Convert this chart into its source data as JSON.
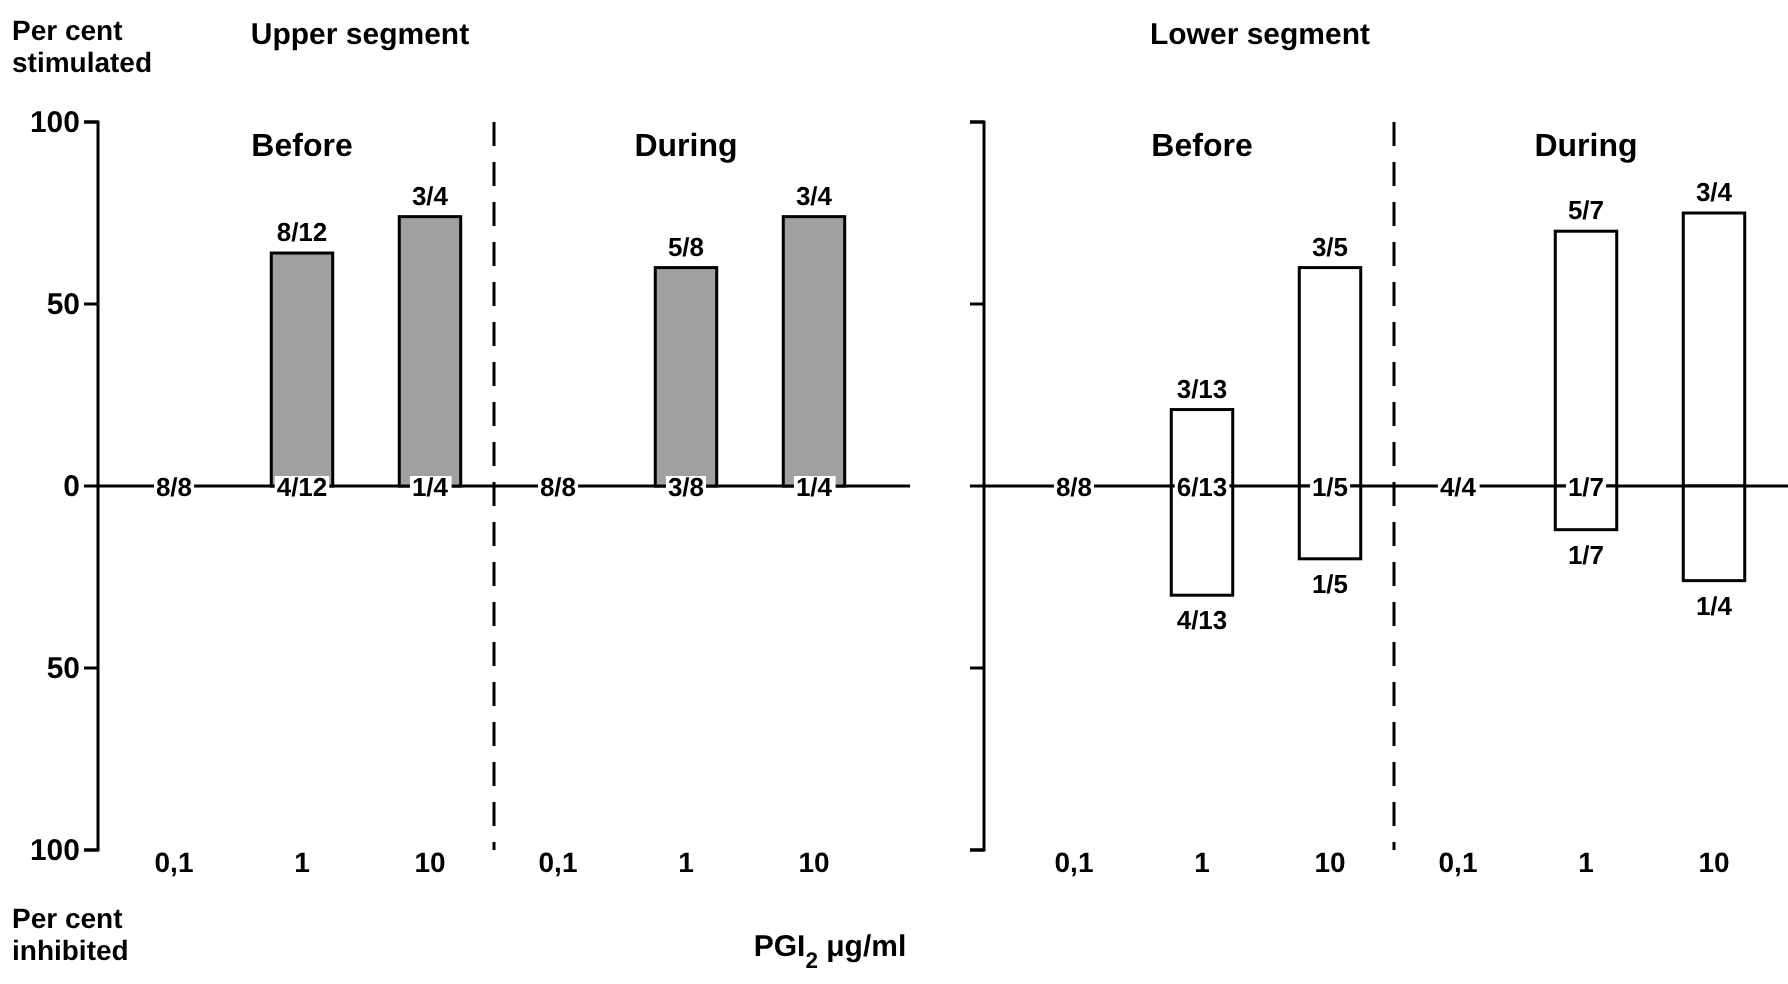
{
  "chart_data": [
    {
      "type": "bar",
      "title": "Before",
      "subtitle": "Upper segment",
      "ylabel": "Per cent stimulated",
      "categories": [
        "0,1",
        "1",
        "10"
      ],
      "ylim": [
        -100,
        100
      ],
      "yticks": [
        100,
        50,
        0,
        {
          "value": -50,
          "label": "50"
        },
        {
          "value": -100,
          "label": "100"
        }
      ],
      "ref_lines": [
        {
          "axis": "y",
          "value": 0
        }
      ],
      "series": [
        {
          "color": "#a0a0a0",
          "values": [
            0,
            64,
            74
          ]
        }
      ],
      "annotations": [
        "Per cent inhibited",
        {
          "text": "8/12",
          "x": "1",
          "y": 64
        },
        {
          "text": "3/4",
          "x": "10",
          "y": 74
        },
        {
          "text": "8/8",
          "x": "0,1",
          "y": 0
        },
        {
          "text": "4/12",
          "x": "1",
          "y": 0
        },
        {
          "text": "1/4",
          "x": "10",
          "y": 0
        }
      ]
    },
    {
      "type": "bar",
      "title": "During",
      "xlabel": "PGI$_{2}$ μg/ml",
      "categories": [
        "0,1",
        "1",
        "10"
      ],
      "ylim": [
        -100,
        100
      ],
      "tick_labels": "x",
      "ref_lines": [
        {
          "axis": "y",
          "value": 0
        }
      ],
      "series": [
        {
          "color": "#a0a0a0",
          "values": [
            0,
            60,
            74
          ]
        }
      ],
      "annotations": [
        {
          "text": "5/8",
          "x": "1",
          "y": 60
        },
        {
          "text": "3/4",
          "x": "10",
          "y": 74
        },
        {
          "text": "8/8",
          "x": "0,1",
          "y": 0
        },
        {
          "text": "3/8",
          "x": "1",
          "y": 0
        },
        {
          "text": "1/4",
          "x": "10",
          "y": 0
        }
      ]
    },
    {
      "type": "bar",
      "title": "Before",
      "subtitle": "Lower segment",
      "categories": [
        "0,1",
        "1",
        "10"
      ],
      "ylim": [
        -100,
        100
      ],
      "tick_labels": "x",
      "stacked": true,
      "ref_lines": [
        {
          "axis": "y",
          "value": 0
        }
      ],
      "series": [
        {
          "color": "#ffffff",
          "values": [
            0,
            21,
            60
          ]
        },
        {
          "color": "#ffffff",
          "values": [
            0,
            -30,
            -20
          ]
        }
      ],
      "annotations": [
        {
          "text": "3/13",
          "x": "1",
          "y": 21
        },
        {
          "text": "3/5",
          "x": "10",
          "y": 60
        },
        {
          "text": "4/13",
          "x": "1",
          "y": -30
        },
        {
          "text": "1/5",
          "x": "10",
          "y": -20
        },
        {
          "text": "8/8",
          "x": "0,1",
          "y": 0
        },
        {
          "text": "6/13",
          "x": "1",
          "y": 0
        },
        {
          "text": "1/5",
          "x": "10",
          "y": 0
        }
      ]
    },
    {
      "type": "bar",
      "title": "During",
      "categories": [
        "0,1",
        "1",
        "10"
      ],
      "ylim": [
        -100,
        100
      ],
      "tick_labels": "x",
      "stacked": true,
      "ref_lines": [
        {
          "axis": "y",
          "value": 0
        }
      ],
      "series": [
        {
          "color": "#ffffff",
          "values": [
            0,
            70,
            75
          ]
        },
        {
          "color": "#ffffff",
          "values": [
            0,
            -12,
            -26
          ]
        }
      ],
      "annotations": [
        {
          "text": "5/7",
          "x": "1",
          "y": 70
        },
        {
          "text": "3/4",
          "x": "10",
          "y": 75
        },
        {
          "text": "1/7",
          "x": "1",
          "y": -12
        },
        {
          "text": "1/4",
          "x": "10",
          "y": -26
        },
        {
          "text": "4/4",
          "x": "0,1",
          "y": 0
        },
        {
          "text": "1/7",
          "x": "1",
          "y": 0
        }
      ]
    }
  ]
}
